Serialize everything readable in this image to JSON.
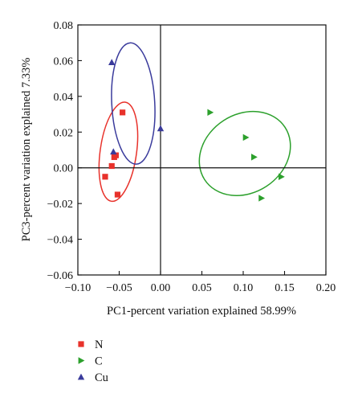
{
  "chart_data": {
    "type": "scatter",
    "title": "",
    "xlabel": "PC1-percent variation explained 58.99%",
    "ylabel": "PC3-percent variation explained 7.33%",
    "xlim": [
      -0.1,
      0.2
    ],
    "ylim": [
      -0.06,
      0.08
    ],
    "x_ticks": [
      "−0.10",
      "−0.05",
      "0.00",
      "0.05",
      "0.10",
      "0.15",
      "0.20"
    ],
    "y_ticks": [
      "0.08",
      "0.06",
      "0.04",
      "0.02",
      "0.00",
      "−0.02",
      "−0.04",
      "−0.06"
    ],
    "zero_lines": true,
    "grid": false,
    "legend_position": "bottom-left",
    "series": [
      {
        "name": "N",
        "marker": "square",
        "color": "#e8322b",
        "points": [
          [
            -0.046,
            0.031
          ],
          [
            -0.054,
            0.007
          ],
          [
            -0.056,
            0.006
          ],
          [
            -0.059,
            0.001
          ],
          [
            -0.067,
            -0.005
          ],
          [
            -0.052,
            -0.015
          ]
        ]
      },
      {
        "name": "C",
        "marker": "triangle-right",
        "color": "#2ca02c",
        "points": [
          [
            0.06,
            0.031
          ],
          [
            0.103,
            0.017
          ],
          [
            0.113,
            0.006
          ],
          [
            0.146,
            -0.005
          ],
          [
            0.122,
            -0.017
          ]
        ]
      },
      {
        "name": "Cu",
        "marker": "triangle-up",
        "color": "#3a3b9c",
        "points": [
          [
            -0.059,
            0.059
          ],
          [
            0.0,
            0.022
          ],
          [
            -0.057,
            0.009
          ]
        ]
      }
    ],
    "ellipses": [
      {
        "series": "N",
        "color": "#e8322b",
        "center": [
          -0.051,
          0.009
        ],
        "radii": [
          0.022,
          0.028
        ],
        "angle": 8
      },
      {
        "series": "C",
        "color": "#2ca02c",
        "center": [
          0.102,
          0.008
        ],
        "radii": [
          0.058,
          0.022
        ],
        "angle": -33
      },
      {
        "series": "Cu",
        "color": "#3a3b9c",
        "center": [
          -0.033,
          0.036
        ],
        "radii": [
          0.026,
          0.034
        ],
        "angle": -3
      }
    ]
  }
}
